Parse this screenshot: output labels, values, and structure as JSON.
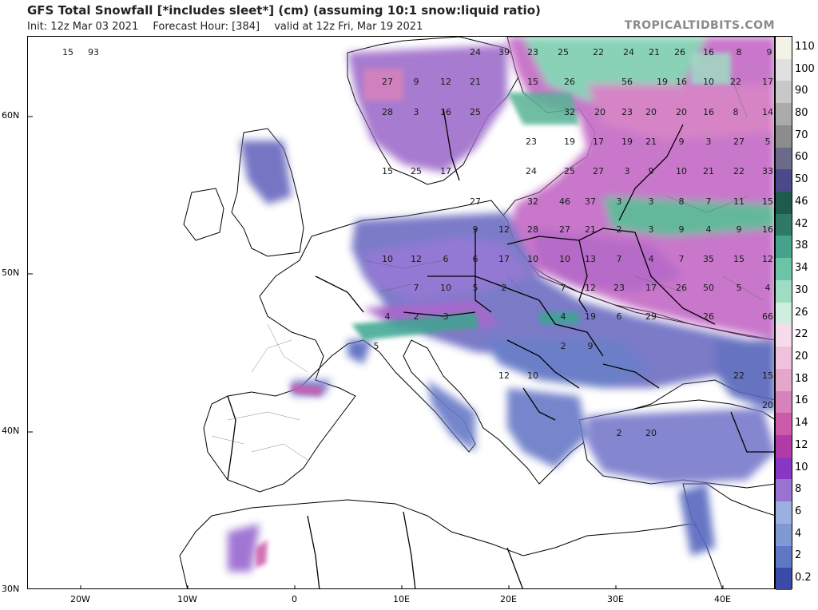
{
  "header": {
    "title": "GFS Total Snowfall [*includes sleet*] (cm) (assuming 10:1 snow:liquid ratio)",
    "init": "Init: 12z Mar 03 2021",
    "forecast_hour": "Forecast Hour: [384]",
    "valid": "valid at 12z Fri, Mar 19 2021",
    "brand": "TROPICALTIDBITS.COM"
  },
  "axes": {
    "lat_labels": [
      "60N",
      "50N",
      "40N",
      "30N"
    ],
    "lon_labels": [
      "20W",
      "10W",
      "0",
      "10E",
      "20E",
      "30E",
      "40E"
    ]
  },
  "colorbar": {
    "labels": [
      "110",
      "100",
      "90",
      "80",
      "70",
      "60",
      "50",
      "46",
      "42",
      "38",
      "34",
      "30",
      "26",
      "22",
      "20",
      "18",
      "16",
      "14",
      "12",
      "10",
      "8",
      "6",
      "4",
      "2",
      "0.2"
    ],
    "colors": [
      "#f2f2e6",
      "#e0e0e0",
      "#c8c8c8",
      "#aaaaaa",
      "#8c8c8c",
      "#6a6a8a",
      "#4a4a8a",
      "#1f5a4e",
      "#2f7a66",
      "#46a28a",
      "#6cc4a8",
      "#9fdcc4",
      "#cfeee0",
      "#f6dcea",
      "#eec2dc",
      "#e6a6cc",
      "#d882bc",
      "#cc5aaa",
      "#b03aa8",
      "#8a36c4",
      "#9a72d2",
      "#9ab0e0",
      "#7d9ad4",
      "#5e78c6",
      "#3a4aa6"
    ]
  },
  "snow_values": [
    {
      "v": "15"
    },
    {
      "v": "93"
    },
    {
      "v": "24"
    },
    {
      "v": "39"
    },
    {
      "v": "23"
    },
    {
      "v": "25"
    },
    {
      "v": "22"
    },
    {
      "v": "24"
    },
    {
      "v": "21"
    },
    {
      "v": "26"
    },
    {
      "v": "16"
    },
    {
      "v": "8"
    },
    {
      "v": "9"
    },
    {
      "v": "27"
    },
    {
      "v": "9"
    },
    {
      "v": "12"
    },
    {
      "v": "21"
    },
    {
      "v": "15"
    },
    {
      "v": "26"
    },
    {
      "v": "56"
    },
    {
      "v": "19"
    },
    {
      "v": "16"
    },
    {
      "v": "10"
    },
    {
      "v": "22"
    },
    {
      "v": "17"
    },
    {
      "v": "28"
    },
    {
      "v": "3"
    },
    {
      "v": "16"
    },
    {
      "v": "25"
    },
    {
      "v": "32"
    },
    {
      "v": "20"
    },
    {
      "v": "23"
    },
    {
      "v": "20"
    },
    {
      "v": "20"
    },
    {
      "v": "16"
    },
    {
      "v": "8"
    },
    {
      "v": "14"
    },
    {
      "v": "23"
    },
    {
      "v": "19"
    },
    {
      "v": "17"
    },
    {
      "v": "19"
    },
    {
      "v": "21"
    },
    {
      "v": "9"
    },
    {
      "v": "3"
    },
    {
      "v": "27"
    },
    {
      "v": "5"
    },
    {
      "v": "15"
    },
    {
      "v": "25"
    },
    {
      "v": "17"
    },
    {
      "v": "24"
    },
    {
      "v": "25"
    },
    {
      "v": "27"
    },
    {
      "v": "3"
    },
    {
      "v": "9"
    },
    {
      "v": "10"
    },
    {
      "v": "21"
    },
    {
      "v": "22"
    },
    {
      "v": "33"
    },
    {
      "v": "27"
    },
    {
      "v": "32"
    },
    {
      "v": "46"
    },
    {
      "v": "37"
    },
    {
      "v": "3"
    },
    {
      "v": "3"
    },
    {
      "v": "8"
    },
    {
      "v": "7"
    },
    {
      "v": "11"
    },
    {
      "v": "15"
    },
    {
      "v": "9"
    },
    {
      "v": "12"
    },
    {
      "v": "28"
    },
    {
      "v": "27"
    },
    {
      "v": "21"
    },
    {
      "v": "2"
    },
    {
      "v": "3"
    },
    {
      "v": "9"
    },
    {
      "v": "4"
    },
    {
      "v": "9"
    },
    {
      "v": "16"
    },
    {
      "v": "10"
    },
    {
      "v": "12"
    },
    {
      "v": "6"
    },
    {
      "v": "6"
    },
    {
      "v": "17"
    },
    {
      "v": "10"
    },
    {
      "v": "10"
    },
    {
      "v": "13"
    },
    {
      "v": "7"
    },
    {
      "v": "4"
    },
    {
      "v": "7"
    },
    {
      "v": "35"
    },
    {
      "v": "15"
    },
    {
      "v": "12"
    },
    {
      "v": "7"
    },
    {
      "v": "10"
    },
    {
      "v": "5"
    },
    {
      "v": "2"
    },
    {
      "v": "7"
    },
    {
      "v": "12"
    },
    {
      "v": "23"
    },
    {
      "v": "17"
    },
    {
      "v": "26"
    },
    {
      "v": "50"
    },
    {
      "v": "5"
    },
    {
      "v": "4"
    },
    {
      "v": "4"
    },
    {
      "v": "2"
    },
    {
      "v": "3"
    },
    {
      "v": "4"
    },
    {
      "v": "19"
    },
    {
      "v": "6"
    },
    {
      "v": "29"
    },
    {
      "v": "26"
    },
    {
      "v": "66"
    },
    {
      "v": "5"
    },
    {
      "v": "2"
    },
    {
      "v": "9"
    },
    {
      "v": "12"
    },
    {
      "v": "10"
    },
    {
      "v": "22"
    },
    {
      "v": "15"
    },
    {
      "v": "20"
    },
    {
      "v": "2"
    },
    {
      "v": "20"
    }
  ]
}
